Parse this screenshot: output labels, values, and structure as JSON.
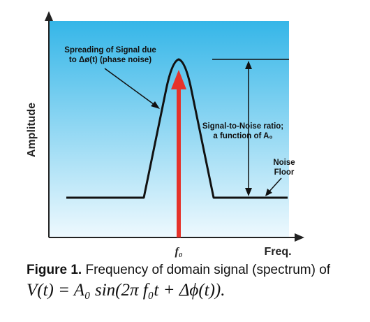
{
  "diagram": {
    "peak_label": "Spreading of Signal due to Δø(t) (phase noise)",
    "peak_label_line1": "Spreading of Signal due",
    "peak_label_line2": "to Δø(t) (phase noise)",
    "snr_label_line1": "Signal-to-Noise ratio;",
    "snr_label_line2": "a function of A₀",
    "noise_label_line1": "Noise",
    "noise_label_line2": "Floor",
    "y_axis_label": "Amplitude",
    "x_axis_label": "Freq.",
    "x_tick_label": "f₀",
    "colors": {
      "gradient_top": "#35b6e8",
      "gradient_bottom": "#eef9fe",
      "carrier": "#e5322a",
      "curve": "#111111"
    }
  },
  "caption": {
    "label": "Figure 1.",
    "text": " Frequency of domain signal (spectrum) of",
    "formula": "V(t) = A₀ sin(2π f₀t + Δϕ(t))."
  }
}
